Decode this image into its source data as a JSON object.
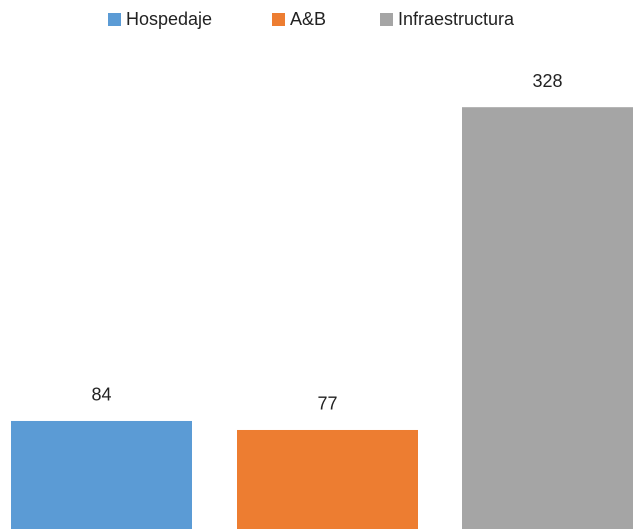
{
  "chart_data": {
    "type": "bar",
    "categories": [
      null
    ],
    "series": [
      {
        "name": "Hospedaje",
        "color": "#5b9bd5",
        "values": [
          84
        ]
      },
      {
        "name": "A&B",
        "color": "#ed7d31",
        "values": [
          77
        ]
      },
      {
        "name": "Infraestructura",
        "color": "#a5a5a5",
        "values": [
          328
        ]
      }
    ],
    "legend": "top"
  }
}
